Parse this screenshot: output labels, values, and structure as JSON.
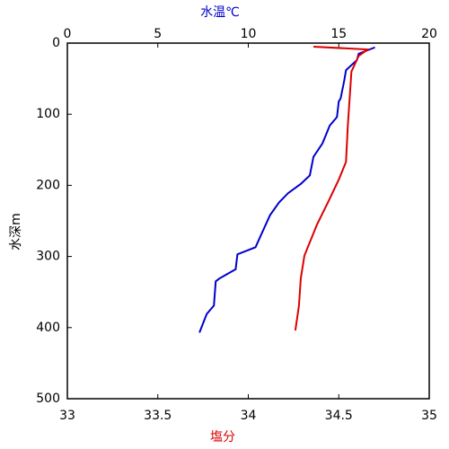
{
  "chart_data": {
    "type": "line",
    "xlabel": "塩分",
    "x2label": "水温℃",
    "ylabel": "水深m",
    "xlim": [
      33,
      35
    ],
    "xticks": [
      33,
      33.5,
      34,
      34.5,
      35
    ],
    "x2lim": [
      0,
      20
    ],
    "x2ticks": [
      0,
      5,
      10,
      15,
      20
    ],
    "ylim": [
      0,
      500
    ],
    "yticks": [
      0,
      100,
      200,
      300,
      400,
      500
    ],
    "y_inverted": true,
    "series": [
      {
        "axis": "x2",
        "color": "#0000cc",
        "x": [
          17.0,
          16.1,
          16.0,
          15.4,
          15.3,
          15.1,
          15.0,
          14.9,
          14.5,
          14.1,
          13.6,
          13.4,
          12.9,
          12.2,
          11.7,
          11.2,
          10.7,
          10.4,
          9.4,
          9.3,
          8.4,
          8.2,
          8.1,
          7.7,
          7.3
        ],
        "y": [
          6,
          15,
          24,
          38,
          53,
          78,
          82,
          104,
          116,
          141,
          160,
          186,
          198,
          211,
          224,
          242,
          270,
          287,
          297,
          318,
          331,
          335,
          369,
          381,
          407
        ]
      },
      {
        "axis": "x",
        "color": "#dd0000",
        "x": [
          34.36,
          34.66,
          34.61,
          34.57,
          34.56,
          34.55,
          34.54,
          34.5,
          34.44,
          34.38,
          34.34,
          34.31,
          34.29,
          34.28,
          34.26
        ],
        "y": [
          5,
          9,
          18,
          40,
          78,
          116,
          167,
          192,
          224,
          255,
          280,
          299,
          331,
          369,
          404
        ]
      }
    ]
  }
}
